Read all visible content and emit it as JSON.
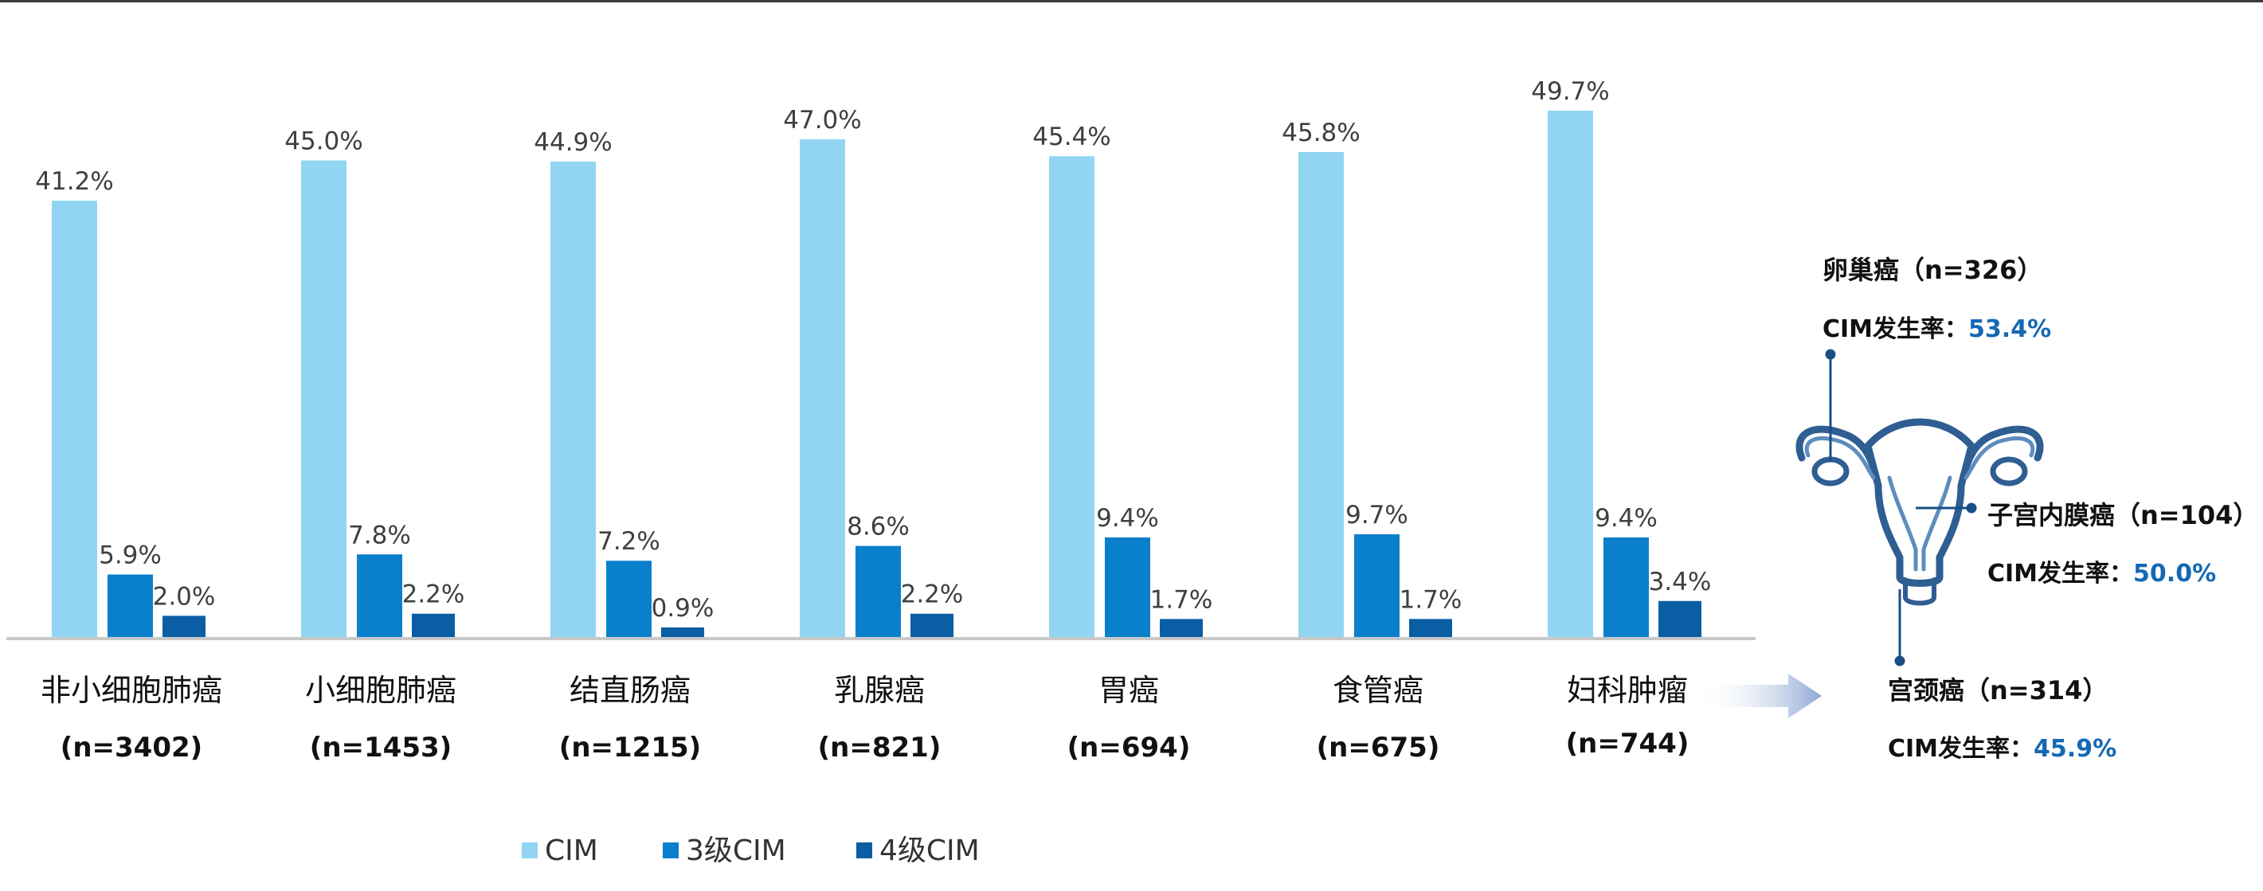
{
  "colors": {
    "cim": "#92D5F2",
    "cim3": "#0A80CC",
    "cim4": "#0A5EA3",
    "highlight": "#1469B4",
    "organ_stroke": "#2E5E92",
    "arrow": "#8FA7D6"
  },
  "chart_data": {
    "type": "bar",
    "categories": [
      "非小细胞肺癌",
      "小细胞肺癌",
      "结直肠癌",
      "乳腺癌",
      "胃癌",
      "食管癌",
      "妇科肿瘤"
    ],
    "sample_sizes": [
      "(n=3402)",
      "(n=1453)",
      "(n=1215)",
      "(n=821)",
      "(n=694)",
      "(n=675)",
      "(n=744)"
    ],
    "series": [
      {
        "name": "CIM",
        "values": [
          41.2,
          45.0,
          44.9,
          47.0,
          45.4,
          45.8,
          49.7
        ],
        "labels": [
          "41.2%",
          "45.0%",
          "44.9%",
          "47.0%",
          "45.4%",
          "45.8%",
          "49.7%"
        ]
      },
      {
        "name": "3级CIM",
        "values": [
          5.9,
          7.8,
          7.2,
          8.6,
          9.4,
          9.7,
          9.4
        ],
        "labels": [
          "5.9%",
          "7.8%",
          "7.2%",
          "8.6%",
          "9.4%",
          "9.7%",
          "9.4%"
        ]
      },
      {
        "name": "4级CIM",
        "values": [
          2.0,
          2.2,
          0.9,
          2.2,
          1.7,
          1.7,
          3.4
        ],
        "labels": [
          "2.0%",
          "2.2%",
          "0.9%",
          "2.2%",
          "1.7%",
          "1.7%",
          "3.4%"
        ]
      }
    ],
    "ylim": [
      0,
      52
    ],
    "grid": false,
    "legend_position": "bottom"
  },
  "annotations": {
    "ovarian": {
      "title": "卵巢癌（n=326）",
      "rate_label": "CIM发生率：",
      "rate_value": "53.4%"
    },
    "endometrial": {
      "title": "子宫内膜癌（n=104）",
      "rate_label": "CIM发生率：",
      "rate_value": "50.0%"
    },
    "cervical": {
      "title": "宫颈癌（n=314）",
      "rate_label": "CIM发生率：",
      "rate_value": "45.9%"
    }
  },
  "icons": {
    "organ": "uterus-icon",
    "arrow": "arrow-right-icon"
  }
}
